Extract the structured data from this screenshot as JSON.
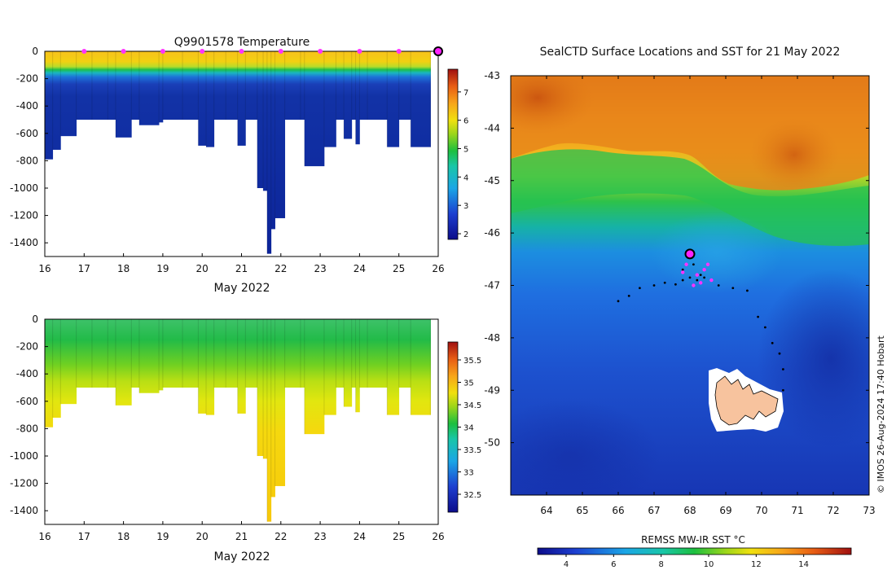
{
  "chart_data": [
    {
      "type": "heatmap",
      "title": "Q9901578  Temperature",
      "xlabel": "May 2022",
      "x_ticks": [
        "16",
        "17",
        "18",
        "19",
        "20",
        "21",
        "22",
        "23",
        "24",
        "25",
        "26"
      ],
      "xlim": [
        16,
        26
      ],
      "ylim": [
        -1500,
        0
      ],
      "y_ticks": [
        "0",
        "-200",
        "-400",
        "-600",
        "-800",
        "-1000",
        "-1200",
        "-1400"
      ],
      "colorbar": {
        "min": 1.8,
        "max": 7.8,
        "ticks": [
          "2",
          "3",
          "4",
          "5",
          "6",
          "7"
        ]
      },
      "surface_markers_day": [
        17,
        18,
        19,
        20,
        21,
        22,
        23,
        24,
        25
      ],
      "current_marker_day": 26,
      "profiles": [
        {
          "t": 16.0,
          "d": 790
        },
        {
          "t": 16.2,
          "d": 720
        },
        {
          "t": 16.4,
          "d": 620
        },
        {
          "t": 16.8,
          "d": 500
        },
        {
          "t": 17.2,
          "d": 500
        },
        {
          "t": 17.6,
          "d": 500
        },
        {
          "t": 17.8,
          "d": 630
        },
        {
          "t": 18.2,
          "d": 500
        },
        {
          "t": 18.4,
          "d": 540
        },
        {
          "t": 18.9,
          "d": 520
        },
        {
          "t": 19.0,
          "d": 500
        },
        {
          "t": 19.5,
          "d": 500
        },
        {
          "t": 19.9,
          "d": 690
        },
        {
          "t": 20.1,
          "d": 700
        },
        {
          "t": 20.3,
          "d": 500
        },
        {
          "t": 20.6,
          "d": 500
        },
        {
          "t": 20.9,
          "d": 690
        },
        {
          "t": 21.1,
          "d": 500
        },
        {
          "t": 21.4,
          "d": 1000
        },
        {
          "t": 21.55,
          "d": 1020
        },
        {
          "t": 21.65,
          "d": 1480
        },
        {
          "t": 21.75,
          "d": 1300
        },
        {
          "t": 21.85,
          "d": 1220
        },
        {
          "t": 22.1,
          "d": 500
        },
        {
          "t": 22.5,
          "d": 500
        },
        {
          "t": 22.6,
          "d": 840
        },
        {
          "t": 23.1,
          "d": 700
        },
        {
          "t": 23.4,
          "d": 500
        },
        {
          "t": 23.6,
          "d": 640
        },
        {
          "t": 23.8,
          "d": 500
        },
        {
          "t": 23.9,
          "d": 680
        },
        {
          "t": 24.0,
          "d": 500
        },
        {
          "t": 24.2,
          "d": 500
        },
        {
          "t": 24.7,
          "d": 700
        },
        {
          "t": 25.0,
          "d": 500
        },
        {
          "t": 25.3,
          "d": 700
        },
        {
          "t": 25.8,
          "d": 700
        }
      ]
    },
    {
      "type": "heatmap",
      "title": "",
      "xlabel": "May 2022",
      "x_ticks": [
        "16",
        "17",
        "18",
        "19",
        "20",
        "21",
        "22",
        "23",
        "24",
        "25",
        "26"
      ],
      "xlim": [
        16,
        26
      ],
      "ylim": [
        -1500,
        0
      ],
      "y_ticks": [
        "0",
        "-200",
        "-400",
        "-600",
        "-800",
        "-1000",
        "-1200",
        "-1400"
      ],
      "colorbar": {
        "min": 32.1,
        "max": 35.9,
        "ticks": [
          "32.5",
          "33",
          "33.5",
          "34",
          "34.5",
          "35",
          "35.5"
        ]
      }
    },
    {
      "type": "heatmap",
      "title": "SealCTD Surface Locations and SST for 21 May 2022",
      "xlim": [
        63,
        73
      ],
      "ylim": [
        -51,
        -43
      ],
      "x_ticks": [
        "64",
        "65",
        "66",
        "67",
        "68",
        "69",
        "70",
        "71",
        "72",
        "73"
      ],
      "y_ticks": [
        "-43",
        "-44",
        "-45",
        "-46",
        "-47",
        "-48",
        "-49",
        "-50"
      ],
      "colorbar": {
        "label": "REMSS MW-IR SST °C",
        "min": 2.8,
        "max": 16,
        "ticks": [
          "4",
          "6",
          "8",
          "10",
          "12",
          "14"
        ]
      },
      "current_position": {
        "lon": 68.0,
        "lat": -46.4
      },
      "track": [
        [
          66.0,
          -47.3
        ],
        [
          66.3,
          -47.2
        ],
        [
          66.6,
          -47.05
        ],
        [
          67.0,
          -47.0
        ],
        [
          67.3,
          -46.95
        ],
        [
          67.6,
          -46.98
        ],
        [
          67.8,
          -46.9
        ],
        [
          68.0,
          -46.85
        ],
        [
          68.2,
          -46.9
        ],
        [
          68.4,
          -46.85
        ],
        [
          68.6,
          -46.9
        ],
        [
          68.8,
          -47.0
        ],
        [
          69.2,
          -47.05
        ],
        [
          69.6,
          -47.1
        ],
        [
          69.9,
          -47.6
        ],
        [
          70.1,
          -47.8
        ],
        [
          70.3,
          -48.1
        ],
        [
          70.5,
          -48.3
        ],
        [
          70.6,
          -48.6
        ],
        [
          70.6,
          -49.0
        ],
        [
          67.9,
          -46.6
        ],
        [
          67.8,
          -46.7
        ],
        [
          68.1,
          -46.6
        ],
        [
          68.3,
          -46.8
        ]
      ],
      "surface_locations": [
        [
          68.0,
          -46.4
        ],
        [
          67.8,
          -46.75
        ],
        [
          68.2,
          -46.8
        ],
        [
          68.4,
          -46.7
        ],
        [
          68.6,
          -46.9
        ],
        [
          68.1,
          -47.0
        ],
        [
          67.9,
          -46.6
        ],
        [
          68.5,
          -46.6
        ],
        [
          68.3,
          -46.95
        ]
      ]
    }
  ],
  "credit": "© IMOS 26-Aug-2024 17:40 Hobart"
}
